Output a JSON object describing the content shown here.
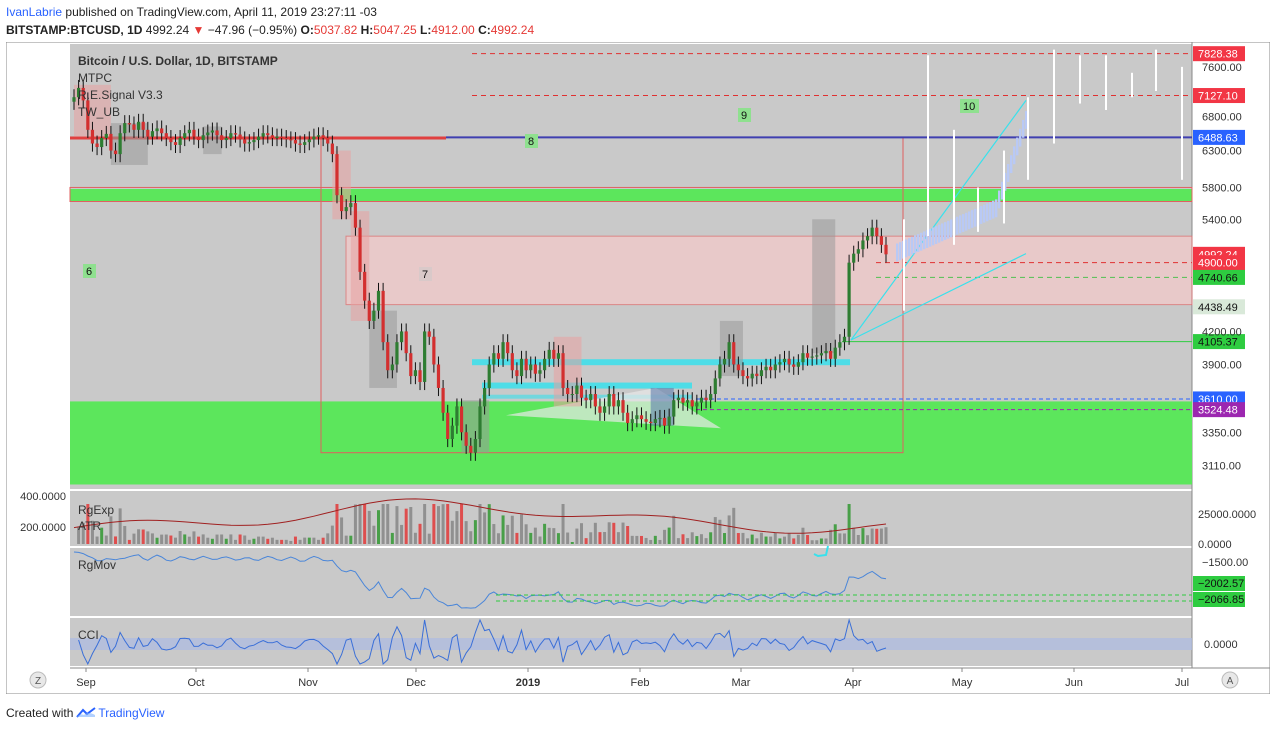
{
  "header": {
    "author": "IvanLabrie",
    "published_text": "published on TradingView.com, April 11, 2019 23:27:11 -03"
  },
  "ohlc": {
    "symbol": "BITSTAMP:BTCUSD, 1D",
    "last": "4992.24",
    "change": "−47.96 (−0.95%)",
    "o_label": "O:",
    "o": "5037.82",
    "h_label": "H:",
    "h": "5047.25",
    "l_label": "L:",
    "l": "4912.00",
    "c_label": "C:",
    "c": "4992.24"
  },
  "legend": {
    "title": "Bitcoin / U.S. Dollar, 1D, BITSTAMP",
    "indicators": [
      "MTPC",
      "R.E.Signal V3.3",
      "TW_UB"
    ]
  },
  "wave_labels": [
    "6",
    "7",
    "8",
    "9",
    "10"
  ],
  "footer": {
    "created_with": "Created with",
    "brand": "TradingView"
  },
  "colors": {
    "up": "#2e7d32",
    "down": "#d32f2f",
    "price_red": "#f23645",
    "green_zone": "#5ce65c",
    "pink_zone": "#f3c9c9",
    "blue_line": "#2962ff",
    "cyan": "#38e1ec",
    "purple": "#9c27b0",
    "pane_bg": "#c9c9c9",
    "indicator_line": "#4a86d9"
  },
  "chart_data": {
    "type": "line",
    "title": "Bitcoin / U.S. Dollar, 1D, BITSTAMP",
    "x_axis_labels": [
      "Sep",
      "Oct",
      "Nov",
      "Dec",
      "2019",
      "Feb",
      "Mar",
      "Apr",
      "May",
      "Jun",
      "Jul"
    ],
    "y_axis_labels": [
      "7600.00",
      "6800.00",
      "6300.00",
      "5800.00",
      "5400.00",
      "4200.00",
      "3900.00",
      "3350.00",
      "3110.00"
    ],
    "y_scale": "log",
    "y_range": [
      2950,
      8000
    ],
    "price_tags": [
      {
        "label": "7828.38",
        "color": "#f23645",
        "value": 7828.38
      },
      {
        "label": "7127.10",
        "color": "#f23645",
        "value": 7127.1
      },
      {
        "label": "6488.63",
        "color": "#2962ff",
        "value": 6488.63
      },
      {
        "label": "4992.24",
        "color": "#f23645",
        "value": 4992.24
      },
      {
        "label": "4900.00",
        "color": "#f23645",
        "value": 4900.0
      },
      {
        "label": "4740.66",
        "color": "#2ecc40",
        "value": 4740.66
      },
      {
        "label": "4438.49",
        "color": "#d9e9d9",
        "value": 4438.49
      },
      {
        "label": "4105.37",
        "color": "#2ecc40",
        "value": 4105.37
      },
      {
        "label": "3610.00",
        "color": "#2962ff",
        "value": 3610.0
      },
      {
        "label": "3524.48",
        "color": "#9c27b0",
        "value": 3524.48
      }
    ],
    "series": [
      {
        "values": [
          7100,
          7250,
          7050,
          6600,
          6400,
          6350,
          6480,
          6540,
          6300,
          6250,
          6550,
          6700,
          6680,
          6600,
          6720,
          6600,
          6500,
          6580,
          6620,
          6550,
          6480,
          6420,
          6380,
          6480,
          6550,
          6600,
          6500,
          6450,
          6520,
          6560,
          6590,
          6520,
          6450,
          6480,
          6550,
          6530,
          6460,
          6400,
          6420,
          6450,
          6500,
          6550,
          6520,
          6480,
          6500,
          6480,
          6460,
          6450,
          6400,
          6380,
          6420,
          6460,
          6500,
          6520,
          6480,
          6400,
          6250,
          5700,
          5500,
          5550,
          5600,
          5300,
          4800,
          4500,
          4300,
          4400,
          4600,
          4100,
          3850,
          3900,
          4100,
          4200,
          4000,
          3800,
          3850,
          3750,
          4200,
          4150,
          3900,
          3700,
          3500,
          3300,
          3400,
          3550,
          3350,
          3250,
          3200,
          3300,
          3550,
          3700,
          3900,
          4000,
          3950,
          4100,
          4000,
          3850,
          3800,
          3950,
          3850,
          3900,
          3820,
          3850,
          3950,
          4030,
          3950,
          4000,
          3700,
          3650,
          3650,
          3720,
          3620,
          3600,
          3650,
          3550,
          3500,
          3550,
          3650,
          3550,
          3600,
          3500,
          3420,
          3450,
          3480,
          3450,
          3430,
          3420,
          3450,
          3460,
          3400,
          3470,
          3600,
          3620,
          3580,
          3600,
          3550,
          3580,
          3620,
          3600,
          3650,
          3780,
          3900,
          3950,
          4100,
          3900,
          3850,
          3800,
          3780,
          3820,
          3800,
          3850,
          3880,
          3850,
          3900,
          3920,
          3950,
          3900,
          3880,
          3920,
          4000,
          3960,
          3970,
          3980,
          4000,
          4020,
          3950,
          4050,
          4100,
          4150,
          4900,
          5000,
          5050,
          5150,
          5200,
          5300,
          5200,
          5100,
          4992.24
        ]
      }
    ],
    "zones": [
      {
        "from": 5620,
        "to": 5780,
        "color": "#5ce65c"
      },
      {
        "from": 2980,
        "to": 3590,
        "color": "#5ce65c"
      },
      {
        "from": 4460,
        "to": 5200,
        "color": "#f3c9c9"
      }
    ],
    "sub_panes": [
      {
        "name": "RgExp ATR",
        "labels": [
          "RgExp",
          "ATR"
        ],
        "left_axis": [
          "400.0000",
          "200.0000"
        ],
        "right_axis": [
          "25000.0000",
          "0.0000"
        ]
      },
      {
        "name": "RgMov",
        "labels": [
          "RgMov"
        ],
        "right_axis": [
          "−1500.00",
          "−2002.57",
          "−2066.85"
        ]
      },
      {
        "name": "CCI",
        "labels": [
          "CCI"
        ],
        "right_axis": [
          "0.0000"
        ]
      }
    ],
    "grid": false,
    "legend_position": "top-left",
    "corner_buttons": [
      "Z",
      "A"
    ]
  }
}
